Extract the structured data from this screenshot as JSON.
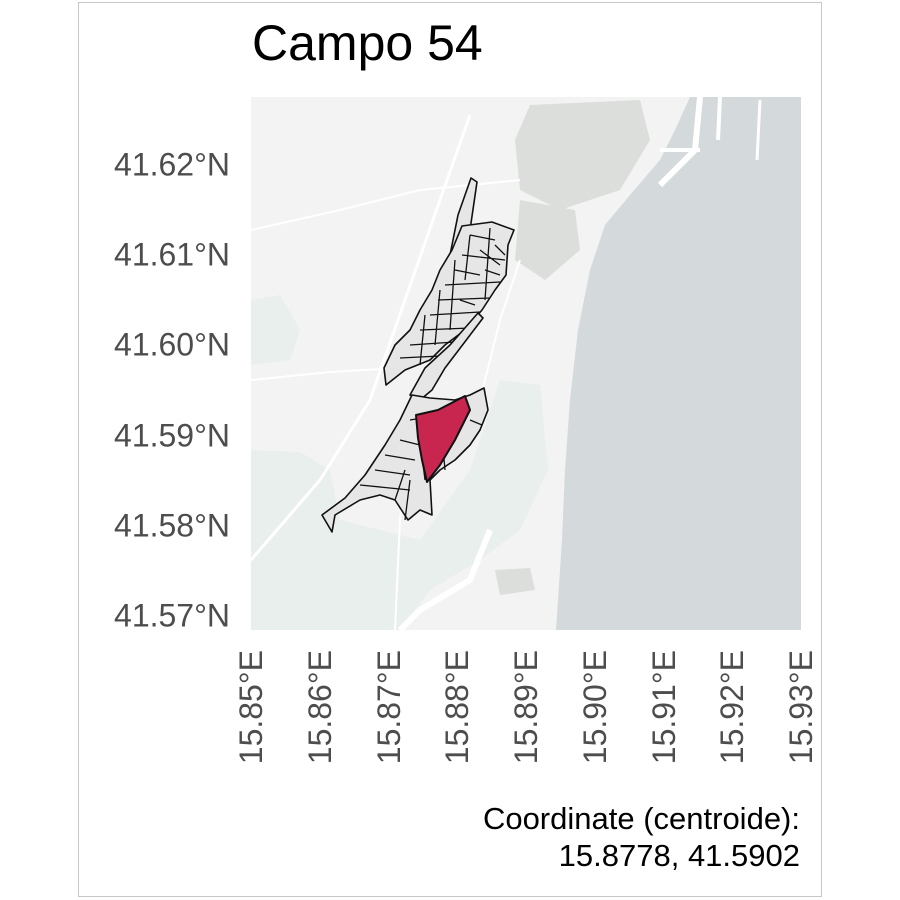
{
  "title": "Campo 54",
  "map": {
    "lon_range": [
      15.85,
      15.93
    ],
    "lat_range": [
      41.5685,
      41.6275
    ],
    "colors": {
      "land": "#f2f3f2",
      "sea": "#d4d9dc",
      "park": "#e9efec",
      "parcel_fill": "#e6e6e6",
      "parcel_stroke": "#111111",
      "highlight": "#c9264f",
      "road": "#ffffff",
      "urban": "#dcdedc"
    },
    "highlighted_parcel": "Campo 54"
  },
  "axes": {
    "y_ticks": [
      {
        "value": 41.62,
        "label": "41.62°N"
      },
      {
        "value": 41.61,
        "label": "41.61°N"
      },
      {
        "value": 41.6,
        "label": "41.60°N"
      },
      {
        "value": 41.59,
        "label": "41.59°N"
      },
      {
        "value": 41.58,
        "label": "41.58°N"
      },
      {
        "value": 41.57,
        "label": "41.57°N"
      }
    ],
    "x_ticks": [
      {
        "value": 15.85,
        "label": "15.85°E"
      },
      {
        "value": 15.86,
        "label": "15.86°E"
      },
      {
        "value": 15.87,
        "label": "15.87°E"
      },
      {
        "value": 15.88,
        "label": "15.88°E"
      },
      {
        "value": 15.89,
        "label": "15.89°E"
      },
      {
        "value": 15.9,
        "label": "15.90°E"
      },
      {
        "value": 15.91,
        "label": "15.91°E"
      },
      {
        "value": 15.92,
        "label": "15.92°E"
      },
      {
        "value": 15.93,
        "label": "15.93°E"
      }
    ]
  },
  "caption": {
    "line1": "Coordinate (centroide):",
    "line2": "15.8778, 41.5902"
  }
}
